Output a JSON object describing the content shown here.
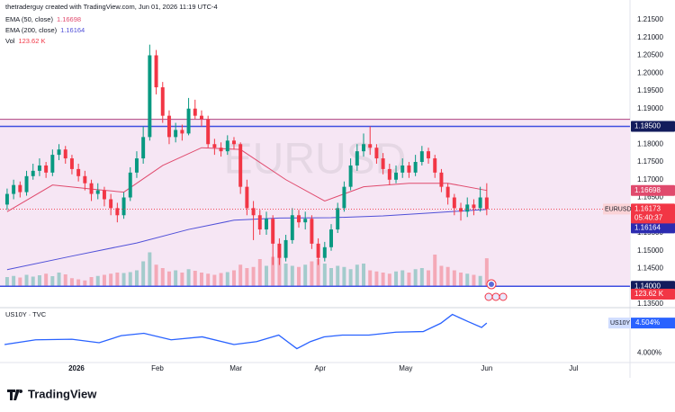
{
  "header": {
    "credit": "thetraderguy created with TradingView.com, Jun 01, 2026 11:19 UTC-4"
  },
  "chart_data": [
    {
      "type": "candlestick",
      "symbol": "EURUSD",
      "watermark": "EURUSD",
      "up_color": "#089981",
      "down_color": "#f23645",
      "xlim": [
        -1.1,
        96.1
      ],
      "xticks": [
        {
          "value": 10.7,
          "label": "2026"
        },
        {
          "value": 23.2,
          "label": "Feb"
        },
        {
          "value": 35.3,
          "label": "Mar"
        },
        {
          "value": 48.3,
          "label": "Apr"
        },
        {
          "value": 61.5,
          "label": "May"
        },
        {
          "value": 74,
          "label": "Jun"
        },
        {
          "value": 87.4,
          "label": "Jul"
        }
      ],
      "ylim": [
        1.1345,
        1.2193
      ],
      "yticks": [
        {
          "value": 1.135,
          "label": "1.13500"
        },
        {
          "value": 1.14,
          "label": "1.14000"
        },
        {
          "value": 1.145,
          "label": "1.14500"
        },
        {
          "value": 1.15,
          "label": "1.15000"
        },
        {
          "value": 1.155,
          "label": "1.15500"
        },
        {
          "value": 1.16,
          "label": "1.16000"
        },
        {
          "value": 1.165,
          "label": "1.16500"
        },
        {
          "value": 1.17,
          "label": "1.17000"
        },
        {
          "value": 1.175,
          "label": "1.17500"
        },
        {
          "value": 1.18,
          "label": "1.18000"
        },
        {
          "value": 1.185,
          "label": "1.18500"
        },
        {
          "value": 1.19,
          "label": "1.19000"
        },
        {
          "value": 1.195,
          "label": "1.19500"
        },
        {
          "value": 1.2,
          "label": "1.20000"
        },
        {
          "value": 1.205,
          "label": "1.20500"
        },
        {
          "value": 1.21,
          "label": "1.21000"
        },
        {
          "value": 1.215,
          "label": "1.21500"
        }
      ],
      "grid": false,
      "ohlc": [
        [
          1.163,
          1.1675,
          1.1615,
          1.166
        ],
        [
          1.166,
          1.17,
          1.1645,
          1.1685
        ],
        [
          1.1685,
          1.1695,
          1.165,
          1.1665
        ],
        [
          1.1665,
          1.1725,
          1.1655,
          1.171
        ],
        [
          1.171,
          1.1745,
          1.17,
          1.1725
        ],
        [
          1.1725,
          1.176,
          1.171,
          1.174
        ],
        [
          1.174,
          1.175,
          1.1705,
          1.172
        ],
        [
          1.172,
          1.1785,
          1.171,
          1.177
        ],
        [
          1.177,
          1.18,
          1.1755,
          1.1785
        ],
        [
          1.1785,
          1.1795,
          1.1745,
          1.176
        ],
        [
          1.176,
          1.177,
          1.1715,
          1.173
        ],
        [
          1.173,
          1.1745,
          1.1695,
          1.171
        ],
        [
          1.171,
          1.1725,
          1.167,
          1.169
        ],
        [
          1.169,
          1.17,
          1.164,
          1.166
        ],
        [
          1.166,
          1.169,
          1.1645,
          1.167
        ],
        [
          1.167,
          1.168,
          1.1625,
          1.1645
        ],
        [
          1.1645,
          1.166,
          1.16,
          1.162
        ],
        [
          1.162,
          1.1635,
          1.158,
          1.16
        ],
        [
          1.16,
          1.1665,
          1.159,
          1.165
        ],
        [
          1.165,
          1.1735,
          1.164,
          1.172
        ],
        [
          1.172,
          1.178,
          1.1705,
          1.176
        ],
        [
          1.176,
          1.185,
          1.1745,
          1.182
        ],
        [
          1.182,
          1.208,
          1.181,
          1.205
        ],
        [
          1.205,
          1.2065,
          1.194,
          1.196
        ],
        [
          1.196,
          1.1975,
          1.186,
          1.188
        ],
        [
          1.188,
          1.1895,
          1.18,
          1.182
        ],
        [
          1.182,
          1.186,
          1.1805,
          1.184
        ],
        [
          1.184,
          1.1855,
          1.181,
          1.183
        ],
        [
          1.183,
          1.193,
          1.1825,
          1.19
        ],
        [
          1.19,
          1.1925,
          1.187,
          1.188
        ],
        [
          1.188,
          1.1895,
          1.185,
          1.187
        ],
        [
          1.187,
          1.188,
          1.179,
          1.18
        ],
        [
          1.18,
          1.1815,
          1.177,
          1.179
        ],
        [
          1.179,
          1.1805,
          1.1765,
          1.178
        ],
        [
          1.178,
          1.1825,
          1.177,
          1.181
        ],
        [
          1.181,
          1.182,
          1.1785,
          1.18
        ],
        [
          1.18,
          1.1805,
          1.166,
          1.168
        ],
        [
          1.168,
          1.17,
          1.16,
          1.162
        ],
        [
          1.162,
          1.164,
          1.153,
          1.16
        ],
        [
          1.16,
          1.1615,
          1.1545,
          1.156
        ],
        [
          1.156,
          1.161,
          1.1545,
          1.159
        ],
        [
          1.159,
          1.16,
          1.146,
          1.152
        ],
        [
          1.152,
          1.1535,
          1.146,
          1.148
        ],
        [
          1.148,
          1.1545,
          1.147,
          1.153
        ],
        [
          1.153,
          1.162,
          1.152,
          1.16
        ],
        [
          1.16,
          1.1615,
          1.1565,
          1.158
        ],
        [
          1.158,
          1.161,
          1.156,
          1.159
        ],
        [
          1.159,
          1.16,
          1.1505,
          1.152
        ],
        [
          1.152,
          1.1535,
          1.146,
          1.148
        ],
        [
          1.148,
          1.1525,
          1.147,
          1.151
        ],
        [
          1.151,
          1.1575,
          1.15,
          1.156
        ],
        [
          1.156,
          1.1635,
          1.155,
          1.162
        ],
        [
          1.162,
          1.1695,
          1.161,
          1.168
        ],
        [
          1.168,
          1.176,
          1.167,
          1.174
        ],
        [
          1.174,
          1.18,
          1.1725,
          1.178
        ],
        [
          1.178,
          1.183,
          1.1765,
          1.18
        ],
        [
          1.18,
          1.185,
          1.177,
          1.179
        ],
        [
          1.179,
          1.18,
          1.1745,
          1.176
        ],
        [
          1.176,
          1.1775,
          1.1715,
          1.173
        ],
        [
          1.173,
          1.1745,
          1.1685,
          1.17
        ],
        [
          1.17,
          1.174,
          1.169,
          1.172
        ],
        [
          1.172,
          1.176,
          1.1705,
          1.174
        ],
        [
          1.174,
          1.175,
          1.1705,
          1.172
        ],
        [
          1.172,
          1.177,
          1.171,
          1.175
        ],
        [
          1.175,
          1.1795,
          1.174,
          1.178
        ],
        [
          1.178,
          1.179,
          1.1745,
          1.176
        ],
        [
          1.176,
          1.177,
          1.1705,
          1.172
        ],
        [
          1.172,
          1.173,
          1.1665,
          1.168
        ],
        [
          1.168,
          1.169,
          1.163,
          1.165
        ],
        [
          1.165,
          1.166,
          1.16,
          1.162
        ],
        [
          1.162,
          1.1635,
          1.1585,
          1.161
        ],
        [
          1.161,
          1.165,
          1.1595,
          1.163
        ],
        [
          1.163,
          1.1645,
          1.16,
          1.162
        ],
        [
          1.162,
          1.168,
          1.161,
          1.165
        ],
        [
          1.165,
          1.169,
          1.16,
          1.16173
        ]
      ],
      "last_label": "1.16173",
      "countdown": "05:40:37",
      "volume_name": "Vol",
      "volume_label": "123.62 K",
      "volume_ylim": [
        0,
        400
      ],
      "volume": [
        40,
        45,
        38,
        50,
        42,
        48,
        55,
        44,
        60,
        52,
        35,
        30,
        25,
        40,
        45,
        50,
        55,
        60,
        58,
        62,
        70,
        110,
        150,
        95,
        80,
        65,
        70,
        60,
        75,
        68,
        60,
        55,
        50,
        58,
        62,
        70,
        95,
        80,
        85,
        120,
        90,
        130,
        140,
        100,
        90,
        85,
        95,
        110,
        120,
        100,
        80,
        90,
        85,
        75,
        95,
        100,
        70,
        65,
        60,
        55,
        65,
        70,
        60,
        75,
        80,
        70,
        140,
        90,
        85,
        70,
        60,
        55,
        50,
        45,
        123.62
      ],
      "series": [
        {
          "name": "EMA (50, close)",
          "color": "#e04a6d",
          "value_label": "1.16698",
          "x": [
            0,
            7,
            14,
            18,
            24,
            30,
            36,
            43,
            49,
            55,
            62,
            68,
            74
          ],
          "values": [
            1.161,
            1.1685,
            1.1672,
            1.1665,
            1.174,
            1.179,
            1.1785,
            1.17,
            1.164,
            1.168,
            1.169,
            1.169,
            1.16698
          ]
        },
        {
          "name": "EMA (200, close)",
          "color": "#5050d8",
          "value_label": "1.16164",
          "x": [
            0,
            10,
            20,
            28,
            35,
            42,
            50,
            58,
            65,
            74
          ],
          "values": [
            1.1447,
            1.1485,
            1.1522,
            1.156,
            1.1586,
            1.1592,
            1.1593,
            1.1598,
            1.1606,
            1.16164
          ]
        }
      ],
      "zone": [
        1.14,
        1.187
      ],
      "zone_color": "#f6e6f4",
      "zone_edge": "#b0427f",
      "levels": [
        {
          "value": 1.185,
          "label": "1.18500"
        },
        {
          "value": 1.14,
          "label": "1.14000"
        }
      ],
      "level_color": "#3f4fe0"
    },
    {
      "type": "line",
      "title": "US10Y · TVC",
      "symbol": "US10Y",
      "color": "#2962ff",
      "last_label": "4.504%",
      "ylim": [
        3.85,
        4.75
      ],
      "yticks": [
        {
          "value": 4,
          "label": "4.000%"
        }
      ],
      "x": [
        -0.4,
        4.4,
        10,
        14.2,
        17.6,
        21.1,
        25.3,
        30.1,
        35,
        38.5,
        41.9,
        44.7,
        46.8,
        48.9,
        51.7,
        55.8,
        60,
        64.2,
        66.9,
        68.7,
        71.1,
        73.2,
        74
      ],
      "values": [
        4.14,
        4.22,
        4.23,
        4.17,
        4.29,
        4.33,
        4.22,
        4.27,
        4.14,
        4.19,
        4.3,
        4.07,
        4.19,
        4.27,
        4.3,
        4.3,
        4.35,
        4.36,
        4.5,
        4.65,
        4.53,
        4.43,
        4.504
      ]
    }
  ],
  "footer": {
    "brand": "TradingView"
  }
}
